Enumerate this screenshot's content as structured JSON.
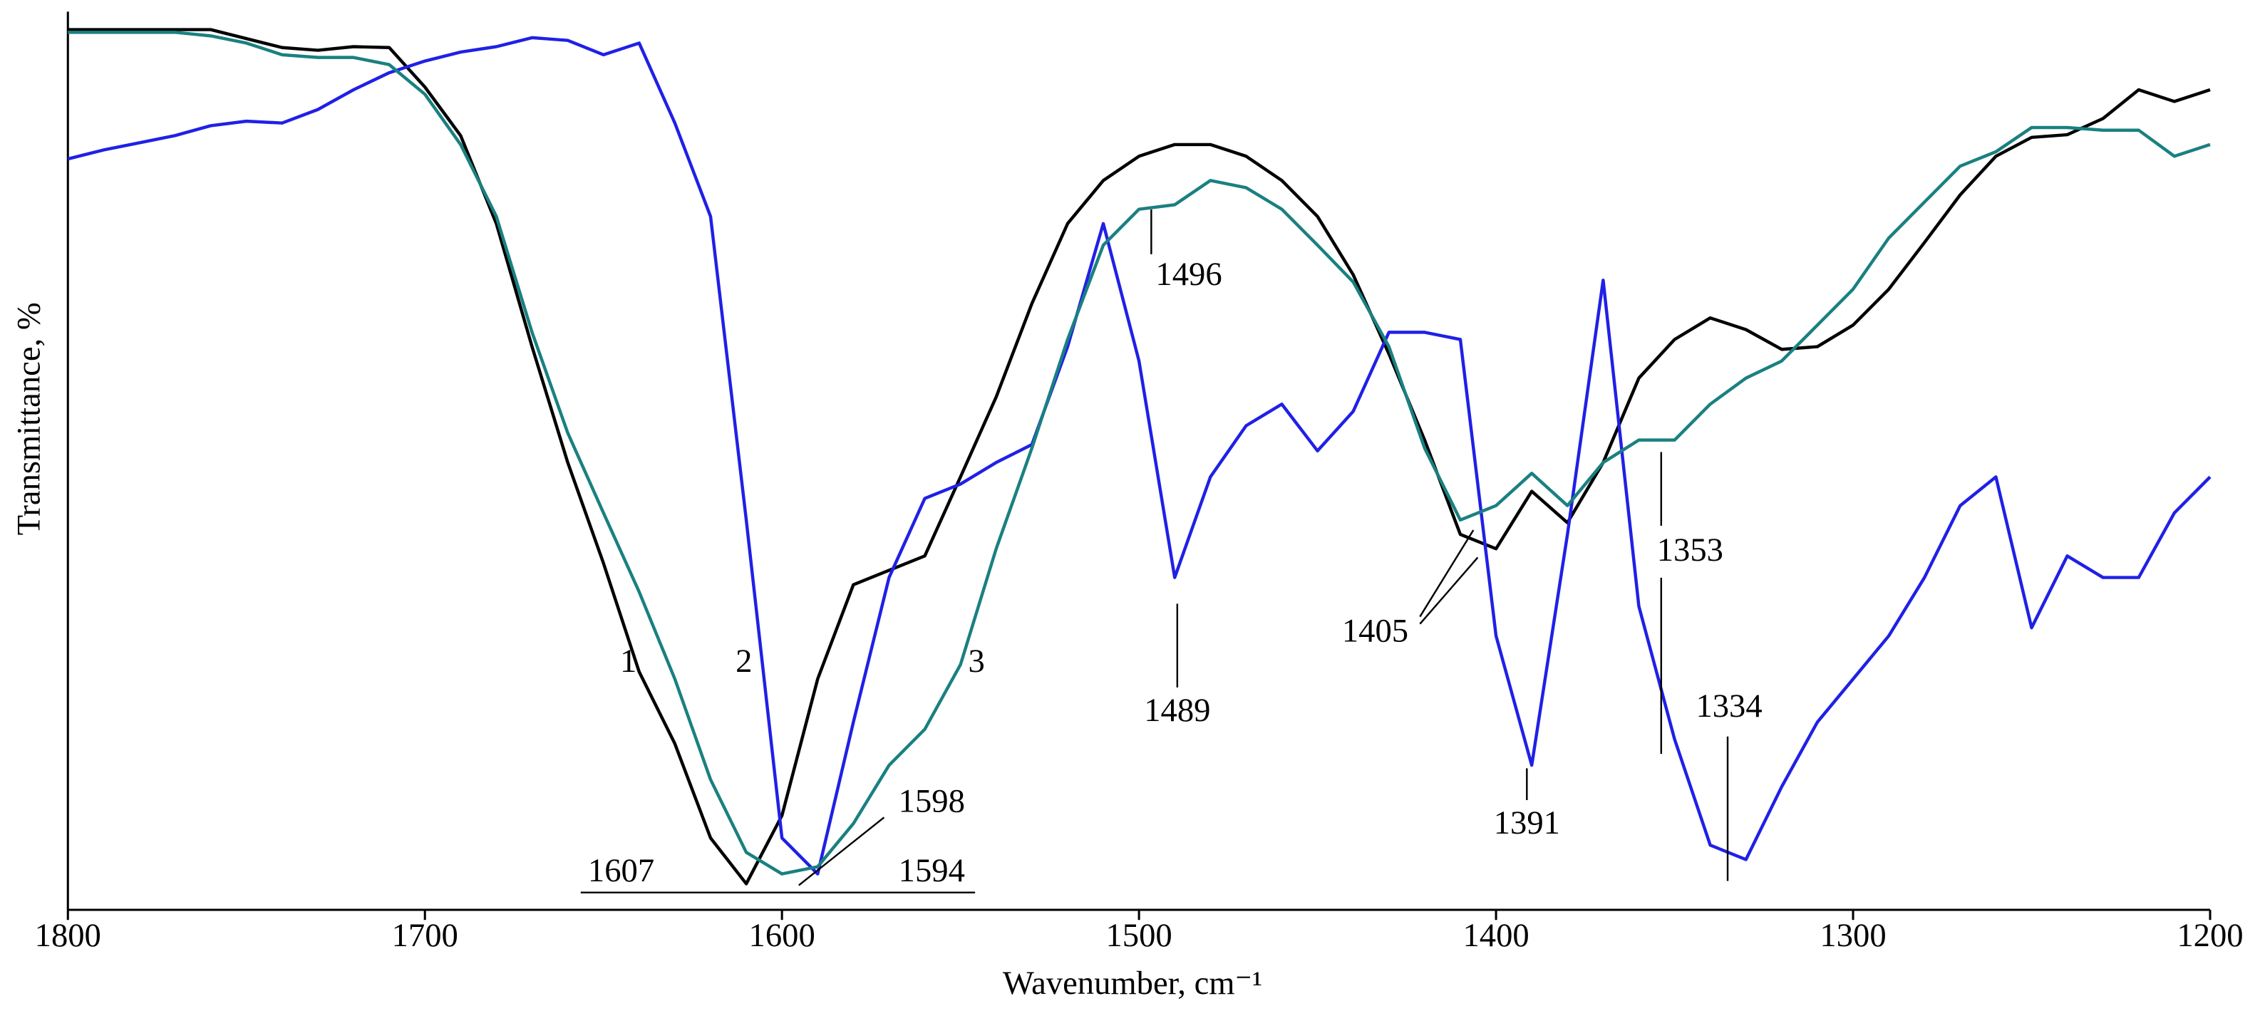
{
  "chart_data": {
    "type": "line",
    "x_label": "Wavenumber, cm⁻¹",
    "y_label": "Transmittance, %",
    "xlim": [
      1800,
      1200
    ],
    "xticks": [
      1800,
      1700,
      1600,
      1500,
      1400,
      1300,
      1200
    ],
    "ylim": [
      0,
      100
    ],
    "x": [
      1800,
      1790,
      1780,
      1770,
      1760,
      1750,
      1740,
      1730,
      1720,
      1710,
      1700,
      1690,
      1680,
      1670,
      1660,
      1650,
      1640,
      1630,
      1620,
      1610,
      1600,
      1590,
      1580,
      1570,
      1560,
      1550,
      1540,
      1530,
      1520,
      1510,
      1500,
      1490,
      1480,
      1470,
      1460,
      1450,
      1440,
      1430,
      1420,
      1410,
      1400,
      1390,
      1380,
      1370,
      1360,
      1350,
      1340,
      1330,
      1320,
      1310,
      1300,
      1290,
      1280,
      1270,
      1260,
      1250,
      1240,
      1230,
      1220,
      1210,
      1200
    ],
    "series": [
      {
        "name": "1",
        "color": "#000000",
        "values": [
          98,
          98,
          98,
          98,
          98,
          97,
          96,
          95.7,
          96.1,
          96,
          91.6,
          86.2,
          76.4,
          62.7,
          49.8,
          38.6,
          26.5,
          18.5,
          8,
          2.9,
          10.5,
          25.7,
          36.2,
          37.8,
          39.4,
          48.2,
          57.1,
          67.5,
          76.4,
          81.2,
          83.9,
          85.2,
          85.2,
          83.9,
          81.2,
          77.2,
          70.7,
          61.9,
          52.3,
          41.8,
          40.2,
          46.6,
          43.1,
          49.8,
          59.2,
          63.5,
          65.9,
          64.6,
          62.4,
          62.7,
          65.1,
          69.1,
          74.3,
          79.6,
          83.9,
          86,
          86.3,
          88.1,
          91.3,
          90,
          91.3
        ]
      },
      {
        "name": "2",
        "color": "#2020e6",
        "values": [
          83.6,
          84.6,
          85.4,
          86.2,
          87.3,
          87.8,
          87.6,
          89.1,
          91.3,
          93.2,
          94.5,
          95.5,
          96.1,
          97.1,
          96.8,
          95.2,
          96.5,
          87.6,
          77.2,
          43.4,
          8,
          4,
          20.9,
          37,
          45.8,
          47.4,
          49.8,
          51.8,
          62.7,
          76.4,
          61.1,
          37,
          48.2,
          53.9,
          56.3,
          51.1,
          55.5,
          64.3,
          64.3,
          63.5,
          30.5,
          16.1,
          41.8,
          70.1,
          33.8,
          19,
          7.2,
          5.6,
          13.7,
          20.9,
          25.7,
          30.5,
          37,
          45,
          48.2,
          31.4,
          39.4,
          37,
          37,
          44.2,
          48.2
        ]
      },
      {
        "name": "3",
        "color": "#1a8080",
        "values": [
          97.7,
          97.7,
          97.7,
          97.7,
          97.3,
          96.5,
          95.2,
          94.9,
          94.9,
          94.1,
          90.8,
          85.2,
          77.2,
          64.3,
          53.1,
          44.2,
          35.4,
          25.7,
          14.5,
          6.4,
          4,
          4.8,
          9.6,
          16.1,
          20.1,
          27.3,
          40.2,
          51.4,
          63.5,
          74,
          78,
          78.5,
          81.2,
          80.4,
          78,
          74,
          69.9,
          62.7,
          51.4,
          43.4,
          45,
          48.6,
          45,
          49.8,
          52.3,
          52.3,
          56.3,
          59.2,
          61.1,
          65.1,
          69.1,
          74.8,
          78.8,
          82.8,
          84.4,
          87.1,
          87.1,
          86.8,
          86.8,
          83.9,
          85.2
        ]
      }
    ],
    "annotations": [
      "1607",
      "1594",
      "1598",
      "1496",
      "1489",
      "1405",
      "1391",
      "1353",
      "1334"
    ]
  }
}
